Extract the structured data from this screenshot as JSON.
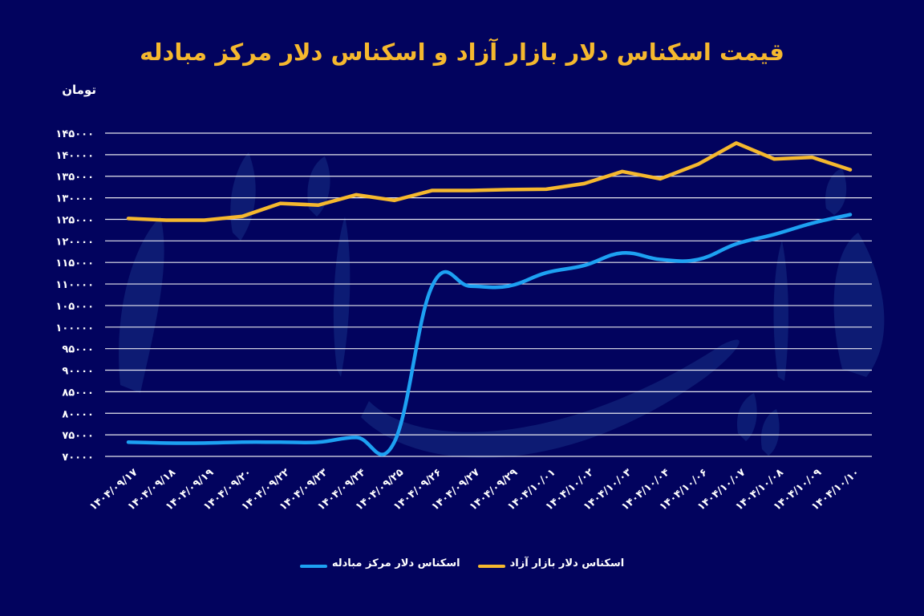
{
  "header": {
    "title": "قیمت اسکناس دلار بازار آزاد و اسکناس دلار مرکز مبادله",
    "unit_label": "تومان"
  },
  "colors": {
    "background": "#02035e",
    "free_market": "#f5b82e",
    "exchange_center": "#1da1f2",
    "grid": "#ffffff",
    "title": "#f5b82e"
  },
  "legend": {
    "items": [
      {
        "label": "اسکناس دلار بازار آزاد",
        "color": "#f5b82e"
      },
      {
        "label": "اسکناس دلار مرکز مبادله",
        "color": "#1da1f2"
      }
    ]
  },
  "chart_data": {
    "type": "line",
    "title": "قیمت اسکناس دلار بازار آزاد و اسکناس دلار مرکز مبادله",
    "xlabel": "",
    "ylabel": "تومان",
    "ylim": [
      70000,
      145000
    ],
    "y_ticks": [
      145000,
      140000,
      135000,
      130000,
      125000,
      120000,
      115000,
      110000,
      105000,
      100000,
      95000,
      90000,
      85000,
      80000,
      75000,
      70000
    ],
    "y_tick_labels": [
      "۱۴۵۰۰۰",
      "۱۴۰۰۰۰",
      "۱۳۵۰۰۰",
      "۱۳۰۰۰۰",
      "۱۲۵۰۰۰",
      "۱۲۰۰۰۰",
      "۱۱۵۰۰۰",
      "۱۱۰۰۰۰",
      "۱۰۵۰۰۰",
      "۱۰۰۰۰۰",
      "۹۵۰۰۰",
      "۹۰۰۰۰",
      "۸۵۰۰۰",
      "۸۰۰۰۰",
      "۷۵۰۰۰",
      "۷۰۰۰۰"
    ],
    "grid": true,
    "legend_position": "bottom",
    "categories": [
      "۱۴۰۴/۰۹/۱۷",
      "۱۴۰۴/۰۹/۱۸",
      "۱۴۰۴/۰۹/۱۹",
      "۱۴۰۴/۰۹/۲۰",
      "۱۴۰۴/۰۹/۲۲",
      "۱۴۰۴/۰۹/۲۳",
      "۱۴۰۴/۰۹/۲۴",
      "۱۴۰۴/۰۹/۲۵",
      "۱۴۰۴/۰۹/۲۶",
      "۱۴۰۴/۰۹/۲۷",
      "۱۴۰۴/۰۹/۲۹",
      "۱۴۰۴/۱۰/۰۱",
      "۱۴۰۴/۱۰/۰۲",
      "۱۴۰۴/۱۰/۰۳",
      "۱۴۰۴/۱۰/۰۴",
      "۱۴۰۴/۱۰/۰۶",
      "۱۴۰۴/۱۰/۰۷",
      "۱۴۰۴/۱۰/۰۸",
      "۱۴۰۴/۱۰/۰۹",
      "۱۴۰۴/۱۰/۱۰"
    ],
    "series": [
      {
        "name": "اسکناس دلار بازار آزاد",
        "color": "#f5b82e",
        "smooth": false,
        "values": [
          125200,
          124800,
          124800,
          125700,
          128700,
          128300,
          130700,
          129400,
          131700,
          131700,
          131900,
          132000,
          133300,
          136100,
          134400,
          137800,
          142700,
          139000,
          139400,
          136500
        ]
      },
      {
        "name": "اسکناس دلار مرکز مبادله",
        "color": "#1da1f2",
        "smooth": true,
        "values": [
          73300,
          73100,
          73100,
          73300,
          73300,
          73300,
          74400,
          73300,
          109600,
          109500,
          109500,
          112600,
          114300,
          117200,
          115700,
          115700,
          119300,
          121500,
          124100,
          126100
        ]
      }
    ]
  }
}
